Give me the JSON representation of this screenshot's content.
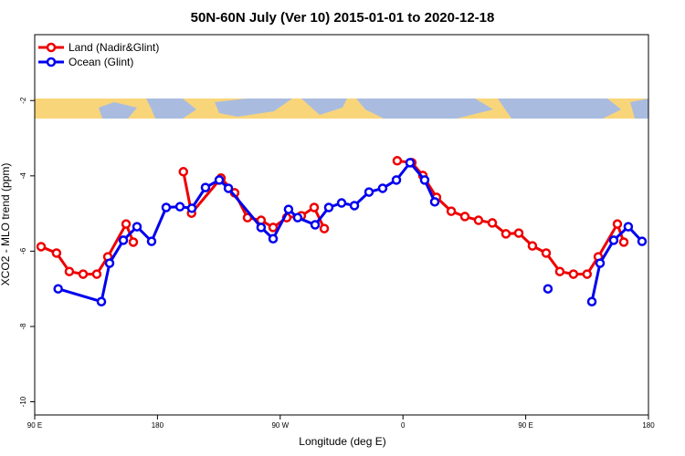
{
  "chart_data": {
    "type": "line",
    "title": "50N-60N July (Ver 10)   2015-01-01 to 2020-12-18",
    "xlabel": "Longitude (deg E)",
    "ylabel": "XCO2 - MLO trend (ppm)",
    "xlim": [
      90,
      540
    ],
    "ylim": [
      -10.35,
      -0.25
    ],
    "xticks": [
      {
        "value": 90,
        "label": "90 E"
      },
      {
        "value": 180,
        "label": "180"
      },
      {
        "value": 270,
        "label": "90 W"
      },
      {
        "value": 360,
        "label": "0"
      },
      {
        "value": 450,
        "label": "90 E"
      },
      {
        "value": 540,
        "label": "180"
      }
    ],
    "yticks": [
      -2,
      -4,
      -6,
      -8,
      -10
    ],
    "legend": "upper left",
    "series": [
      {
        "name": "Land (Nadir&Glint)",
        "color": "#ee0000",
        "x": [
          94.7,
          106,
          115.4,
          125.5,
          135.5,
          143.6,
          157,
          162.3,
          null,
          199,
          205,
          226.6,
          236.6,
          246,
          256,
          264.8,
          274.8,
          285.5,
          294.9,
          302.3,
          null,
          355.8,
          366.5,
          374.6,
          384.6,
          395.4,
          405.4,
          415.4,
          425.5,
          435.5,
          444.9,
          454.9,
          465,
          475,
          485,
          495,
          503.2,
          517.2,
          521.9
        ],
        "values": [
          -5.88,
          -6.05,
          -6.54,
          -6.61,
          -6.61,
          -6.15,
          -5.28,
          -5.76,
          null,
          -3.89,
          -4.99,
          -4.06,
          -4.45,
          -5.11,
          -5.18,
          -5.37,
          -5.11,
          -5.06,
          -4.84,
          -5.4,
          null,
          -3.6,
          -3.65,
          -3.99,
          -4.57,
          -4.94,
          -5.08,
          -5.18,
          -5.25,
          -5.54,
          -5.52,
          -5.86,
          -6.05,
          -6.54,
          -6.61,
          -6.61,
          -6.15,
          -5.28,
          -5.76
        ]
      },
      {
        "name": "Ocean (Glint)",
        "color": "#0000ee",
        "x": [
          107.2,
          138.9,
          144.9,
          155,
          165,
          175.7,
          186.4,
          196.5,
          205.2,
          215.2,
          225.3,
          232,
          256,
          264.8,
          276.1,
          282.8,
          295.6,
          305.6,
          315,
          324.4,
          335.1,
          345.1,
          355.2,
          365.2,
          375.9,
          383.3,
          null,
          466.3,
          null,
          498.5,
          504.5,
          514.5,
          525.2,
          535.3
        ],
        "values": [
          -7.0,
          -7.34,
          -6.32,
          -5.71,
          -5.35,
          -5.74,
          -4.84,
          -4.82,
          -4.86,
          -4.31,
          -4.11,
          -4.33,
          -5.37,
          -5.67,
          -4.89,
          -5.11,
          -5.3,
          -4.84,
          -4.72,
          -4.79,
          -4.43,
          -4.33,
          -4.11,
          -3.65,
          -4.11,
          -4.69,
          null,
          -7.0,
          null,
          -7.34,
          -6.32,
          -5.71,
          -5.35,
          -5.74
        ]
      }
    ]
  }
}
